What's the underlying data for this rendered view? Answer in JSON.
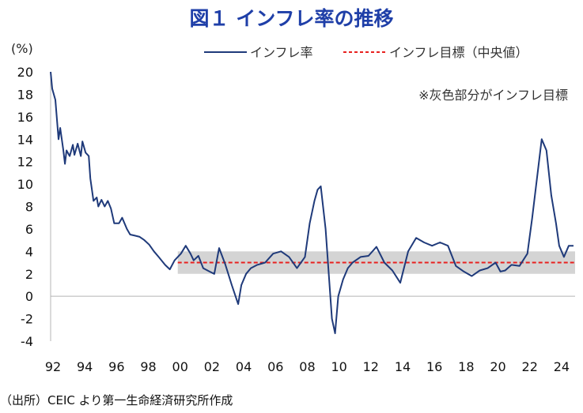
{
  "title": "図１ インフレ率の推移",
  "unit": "(%)",
  "source": "（出所）CEIC より第一生命経済研究所作成",
  "note": "※灰色部分がインフレ目標",
  "colors": {
    "inflation": "#1f3a7a",
    "target": "#e8211f",
    "band": "#d4d4d4",
    "title": "#1f3fa8"
  },
  "chart_data": {
    "type": "line",
    "title": "図１ インフレ率の推移",
    "ylabel": "(%)",
    "xlabel": "",
    "ylim": [
      -4,
      20
    ],
    "xlim": [
      1992,
      2025
    ],
    "yticks": [
      -4,
      -2,
      0,
      2,
      4,
      6,
      8,
      10,
      12,
      14,
      16,
      18,
      20
    ],
    "xtick_labels": [
      "92",
      "94",
      "96",
      "98",
      "00",
      "02",
      "04",
      "06",
      "08",
      "10",
      "12",
      "14",
      "16",
      "18",
      "20",
      "22",
      "24"
    ],
    "legend": [
      "インフレ率",
      "インフレ目標（中央値）"
    ],
    "legend_position": "top-right",
    "grid": false,
    "target_band": [
      2,
      4
    ],
    "series": [
      {
        "name": "インフレ率",
        "style": "solid",
        "x": [
          1992.0,
          1992.1,
          1992.3,
          1992.5,
          1992.6,
          1992.8,
          1992.9,
          1993.0,
          1993.2,
          1993.4,
          1993.5,
          1993.7,
          1993.9,
          1994.0,
          1994.2,
          1994.4,
          1994.5,
          1994.7,
          1994.9,
          1995.0,
          1995.2,
          1995.4,
          1995.6,
          1995.8,
          1996.0,
          1996.3,
          1996.5,
          1996.8,
          1997.0,
          1997.3,
          1997.6,
          1997.9,
          1998.2,
          1998.5,
          1998.8,
          1999.2,
          1999.5,
          1999.8,
          2000.0,
          2000.2,
          2000.5,
          2000.8,
          2001.0,
          2001.3,
          2001.6,
          2002.0,
          2002.3,
          2002.6,
          2003.0,
          2003.4,
          2003.8,
          2004.0,
          2004.3,
          2004.6,
          2005.0,
          2005.5,
          2006.0,
          2006.5,
          2007.0,
          2007.5,
          2008.0,
          2008.3,
          2008.6,
          2008.8,
          2009.0,
          2009.3,
          2009.5,
          2009.7,
          2009.9,
          2010.1,
          2010.4,
          2010.7,
          2011.0,
          2011.5,
          2012.0,
          2012.5,
          2013.0,
          2013.5,
          2014.0,
          2014.5,
          2015.0,
          2015.5,
          2016.0,
          2016.5,
          2017.0,
          2017.5,
          2018.0,
          2018.5,
          2019.0,
          2019.5,
          2020.0,
          2020.3,
          2020.6,
          2021.0,
          2021.5,
          2022.0,
          2022.3,
          2022.6,
          2022.9,
          2023.2,
          2023.5,
          2023.8,
          2024.0,
          2024.3,
          2024.6,
          2024.9
        ],
        "y": [
          20.0,
          18.5,
          17.5,
          14.0,
          15.0,
          13.0,
          11.8,
          13.0,
          12.5,
          13.5,
          12.6,
          13.6,
          12.5,
          13.8,
          12.8,
          12.5,
          10.5,
          8.5,
          8.8,
          8.0,
          8.6,
          8.0,
          8.5,
          7.8,
          6.5,
          6.5,
          7.0,
          6.0,
          5.5,
          5.4,
          5.3,
          5.0,
          4.6,
          4.0,
          3.5,
          2.8,
          2.4,
          3.2,
          3.5,
          3.8,
          4.5,
          3.8,
          3.2,
          3.6,
          2.5,
          2.2,
          2.0,
          4.3,
          2.8,
          1.0,
          -0.7,
          1.0,
          2.0,
          2.5,
          2.8,
          3.0,
          3.8,
          4.0,
          3.5,
          2.5,
          3.5,
          6.5,
          8.5,
          9.5,
          9.8,
          6.0,
          2.0,
          -2.0,
          -3.3,
          0.0,
          1.5,
          2.5,
          3.0,
          3.5,
          3.6,
          4.4,
          3.0,
          2.3,
          1.2,
          4.0,
          5.2,
          4.8,
          4.5,
          4.8,
          4.5,
          2.7,
          2.2,
          1.8,
          2.3,
          2.5,
          3.0,
          2.2,
          2.3,
          2.8,
          2.7,
          3.8,
          7.0,
          10.5,
          14.0,
          13.0,
          9.0,
          6.5,
          4.5,
          3.5,
          4.5,
          4.5
        ]
      },
      {
        "name": "インフレ目標（中央値）",
        "style": "dashed",
        "x": [
          2000.0,
          2025.0
        ],
        "y": [
          3,
          3
        ]
      }
    ]
  }
}
